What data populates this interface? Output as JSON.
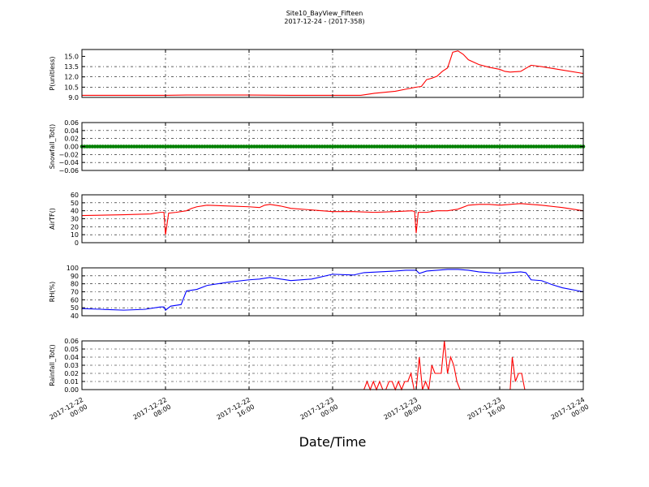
{
  "figure": {
    "title_line1": "Site10_BayView_Fifteen",
    "title_line2": "2017-12-24 - (2017-358)",
    "xlabel": "Date/Time",
    "x_ticks": [
      {
        "l1": "2017-12-22",
        "l2": "00:00",
        "h": 0
      },
      {
        "l1": "2017-12-22",
        "l2": "08:00",
        "h": 8
      },
      {
        "l1": "2017-12-22",
        "l2": "16:00",
        "h": 16
      },
      {
        "l1": "2017-12-23",
        "l2": "00:00",
        "h": 24
      },
      {
        "l1": "2017-12-23",
        "l2": "08:00",
        "h": 32
      },
      {
        "l1": "2017-12-23",
        "l2": "16:00",
        "h": 40
      },
      {
        "l1": "2017-12-24",
        "l2": "00:00",
        "h": 48
      }
    ]
  },
  "chart_data": [
    {
      "type": "line",
      "ylabel": "P(unitless)",
      "ylim": [
        9.0,
        16.0
      ],
      "yticks": [
        9.0,
        10.5,
        12.0,
        13.5,
        15.0
      ],
      "ytick_labels": [
        "9.0",
        "10.5",
        "12.0",
        "13.5",
        "15.0"
      ],
      "grid": true,
      "color": "#ff0000",
      "x_hours": [
        0,
        8,
        10,
        16,
        20,
        24,
        26.7,
        28,
        30,
        31,
        32,
        32.5,
        33,
        33.5,
        34,
        34.5,
        35,
        35.2,
        35.5,
        36,
        36.5,
        37,
        38,
        39,
        40,
        40.5,
        41,
        42,
        43,
        44,
        46,
        48
      ],
      "values": [
        9.3,
        9.3,
        9.35,
        9.35,
        9.3,
        9.3,
        9.3,
        9.6,
        9.9,
        10.2,
        10.5,
        10.6,
        11.6,
        11.8,
        12.1,
        12.8,
        13.3,
        14.2,
        15.6,
        15.8,
        15.3,
        14.5,
        13.8,
        13.4,
        13.1,
        12.8,
        12.7,
        12.8,
        13.7,
        13.5,
        13.0,
        12.5
      ]
    },
    {
      "type": "scatter",
      "ylabel": "Snowfall_Tot()",
      "ylim": [
        -0.06,
        0.06
      ],
      "yticks": [
        -0.06,
        -0.04,
        -0.02,
        0.0,
        0.02,
        0.04,
        0.06
      ],
      "ytick_labels": [
        "−0.06",
        "−0.04",
        "−0.02",
        "0.00",
        "0.02",
        "0.04",
        "0.06"
      ],
      "grid": true,
      "color": "#008000",
      "x_range_hours": [
        0,
        48
      ],
      "constant_value": 0.0
    },
    {
      "type": "line",
      "ylabel": "AirTF()",
      "ylim": [
        0,
        60
      ],
      "yticks": [
        0,
        10,
        20,
        30,
        40,
        50,
        60
      ],
      "ytick_labels": [
        "0",
        "10",
        "20",
        "30",
        "40",
        "50",
        "60"
      ],
      "grid": true,
      "color": "#ff0000",
      "x_hours": [
        0,
        4,
        6.6,
        7,
        7.5,
        7.85,
        8,
        8.3,
        9,
        10,
        10.5,
        11,
        12,
        14,
        16,
        17,
        17.5,
        18,
        19,
        20,
        22,
        24,
        26,
        28,
        30,
        31.6,
        31.85,
        32,
        32.2,
        33,
        34,
        35,
        36,
        37,
        38,
        39,
        40,
        41,
        42,
        43,
        44,
        46,
        48
      ],
      "values": [
        34,
        35,
        36,
        37,
        38,
        38,
        10,
        37,
        38,
        40,
        43,
        45,
        47,
        46,
        45,
        44,
        47,
        48,
        46,
        43,
        41,
        39,
        39,
        38,
        39,
        40,
        39,
        12,
        38,
        38,
        40,
        40,
        42,
        47,
        48,
        48,
        47,
        48,
        49,
        48,
        47,
        44,
        40
      ]
    },
    {
      "type": "line",
      "ylabel": "RH(%)",
      "ylim": [
        40,
        100
      ],
      "yticks": [
        40,
        50,
        60,
        70,
        80,
        90,
        100
      ],
      "ytick_labels": [
        "40",
        "50",
        "60",
        "70",
        "80",
        "90",
        "100"
      ],
      "grid": true,
      "color": "#0000ff",
      "x_hours": [
        0,
        2,
        4,
        6,
        7.5,
        7.85,
        8,
        8.5,
        9.5,
        10,
        11,
        12,
        14,
        16,
        17,
        18,
        20,
        22,
        24,
        26,
        27,
        30,
        31,
        32,
        32.3,
        33,
        34,
        35,
        36,
        37,
        38,
        39,
        40,
        41,
        42,
        42.5,
        43,
        44,
        45,
        46,
        48
      ],
      "values": [
        49,
        48,
        47,
        48,
        51,
        51,
        47,
        52,
        54,
        71,
        73,
        78,
        82,
        85,
        86,
        88,
        84,
        86,
        92,
        91,
        94,
        96,
        97,
        97,
        93,
        96,
        97,
        98,
        98,
        97,
        95,
        94,
        93,
        94,
        95,
        94,
        85,
        84,
        79,
        75,
        70
      ]
    },
    {
      "type": "line",
      "ylabel": "Rainfall_Tot()",
      "ylim": [
        0.0,
        0.06
      ],
      "yticks": [
        0.0,
        0.01,
        0.02,
        0.03,
        0.04,
        0.05,
        0.06
      ],
      "ytick_labels": [
        "0.00",
        "0.01",
        "0.02",
        "0.03",
        "0.04",
        "0.05",
        "0.06"
      ],
      "grid": true,
      "color": "#ff0000",
      "x_hours": [
        0,
        27.0,
        27.3,
        27.6,
        27.9,
        28.2,
        28.5,
        28.8,
        29.1,
        29.4,
        29.7,
        30.0,
        30.3,
        30.6,
        30.9,
        31.2,
        31.5,
        31.8,
        32.0,
        32.3,
        32.6,
        32.9,
        33.2,
        33.5,
        33.8,
        34.1,
        34.4,
        34.7,
        35.0,
        35.3,
        35.6,
        35.9,
        36.2,
        36.5,
        37.0,
        41.0,
        41.2,
        41.5,
        41.8,
        42.1,
        42.4,
        48
      ],
      "values": [
        0,
        0,
        0.01,
        0.0,
        0.01,
        0.0,
        0.01,
        0.0,
        0.0,
        0.01,
        0.01,
        0.0,
        0.01,
        0.0,
        0.01,
        0.01,
        0.02,
        0.0,
        0.0,
        0.04,
        0.0,
        0.01,
        0.0,
        0.03,
        0.02,
        0.02,
        0.02,
        0.06,
        0.02,
        0.04,
        0.03,
        0.01,
        0.0,
        0.0,
        0.0,
        0.0,
        0.04,
        0.01,
        0.02,
        0.02,
        0.0,
        0.0
      ]
    }
  ]
}
